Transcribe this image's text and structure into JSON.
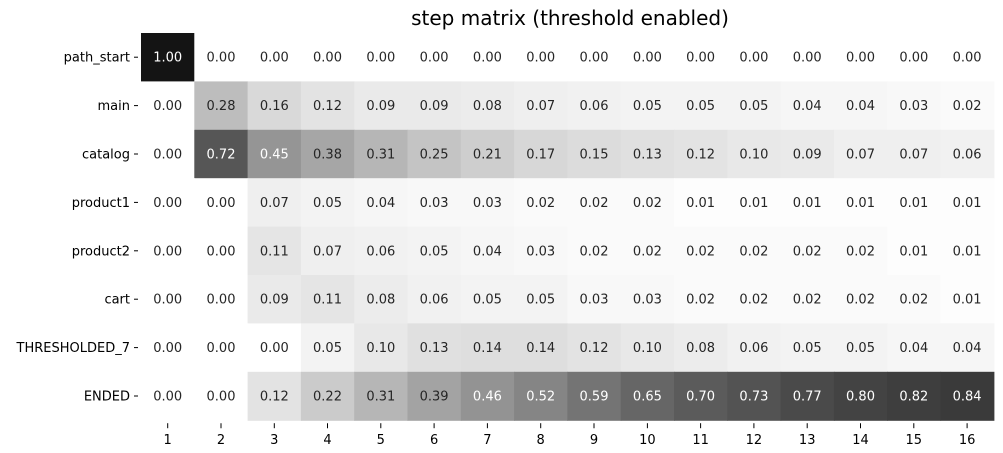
{
  "chart_data": {
    "type": "heatmap",
    "title": "step matrix (threshold enabled)",
    "xlabel": "",
    "ylabel": "",
    "colormap": "greys",
    "vmin": 0,
    "vmax": 1,
    "colorbar": false,
    "rows": [
      "path_start",
      "main",
      "catalog",
      "product1",
      "product2",
      "cart",
      "THRESHOLDED_7",
      "ENDED"
    ],
    "columns": [
      "1",
      "2",
      "3",
      "4",
      "5",
      "6",
      "7",
      "8",
      "9",
      "10",
      "11",
      "12",
      "13",
      "14",
      "15",
      "16"
    ],
    "values": [
      [
        1.0,
        0.0,
        0.0,
        0.0,
        0.0,
        0.0,
        0.0,
        0.0,
        0.0,
        0.0,
        0.0,
        0.0,
        0.0,
        0.0,
        0.0,
        0.0
      ],
      [
        0.0,
        0.28,
        0.16,
        0.12,
        0.09,
        0.09,
        0.08,
        0.07,
        0.06,
        0.05,
        0.05,
        0.05,
        0.04,
        0.04,
        0.03,
        0.02
      ],
      [
        0.0,
        0.72,
        0.45,
        0.38,
        0.31,
        0.25,
        0.21,
        0.17,
        0.15,
        0.13,
        0.12,
        0.1,
        0.09,
        0.07,
        0.07,
        0.06
      ],
      [
        0.0,
        0.0,
        0.07,
        0.05,
        0.04,
        0.03,
        0.03,
        0.02,
        0.02,
        0.02,
        0.01,
        0.01,
        0.01,
        0.01,
        0.01,
        0.01
      ],
      [
        0.0,
        0.0,
        0.11,
        0.07,
        0.06,
        0.05,
        0.04,
        0.03,
        0.02,
        0.02,
        0.02,
        0.02,
        0.02,
        0.02,
        0.01,
        0.01
      ],
      [
        0.0,
        0.0,
        0.09,
        0.11,
        0.08,
        0.06,
        0.05,
        0.05,
        0.03,
        0.03,
        0.02,
        0.02,
        0.02,
        0.02,
        0.02,
        0.01
      ],
      [
        0.0,
        0.0,
        0.0,
        0.05,
        0.1,
        0.13,
        0.14,
        0.14,
        0.12,
        0.1,
        0.08,
        0.06,
        0.05,
        0.05,
        0.04,
        0.04
      ],
      [
        0.0,
        0.0,
        0.12,
        0.22,
        0.31,
        0.39,
        0.46,
        0.52,
        0.59,
        0.65,
        0.7,
        0.73,
        0.77,
        0.8,
        0.82,
        0.84
      ]
    ]
  }
}
